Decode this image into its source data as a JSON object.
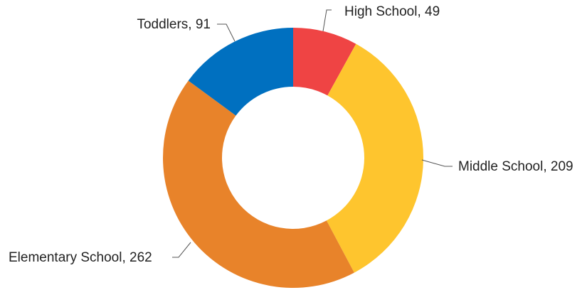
{
  "chart_data": {
    "type": "pie",
    "donut": true,
    "title": "",
    "legend": "none",
    "categories": [
      "High School",
      "Middle School",
      "Elementary School",
      "Toddlers"
    ],
    "values": [
      49,
      209,
      262,
      91
    ],
    "colors": [
      "#ef4444",
      "#fec52e",
      "#e8832a",
      "#0070c0"
    ],
    "labels": [
      "High School, 49",
      "Middle School, 209",
      "Elementary School, 262",
      "Toddlers, 91"
    ]
  }
}
